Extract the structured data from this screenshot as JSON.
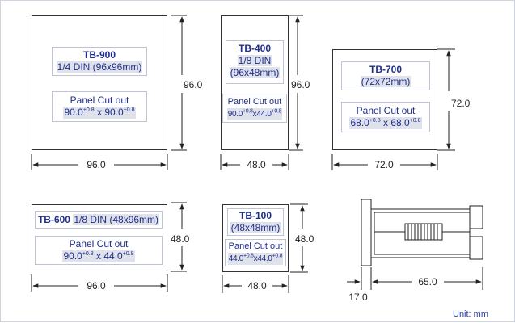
{
  "unit_note": "Unit: mm",
  "panel_cutout_label": "Panel Cut out",
  "models": {
    "tb900": {
      "name": "TB-900",
      "size": "1/4 DIN (96x96mm)",
      "cut_w": "90.0",
      "cut_w_tol": "+0.8",
      "times": "x",
      "cut_h": "90.0",
      "cut_h_tol": "+0.8",
      "width_dim": "96.0",
      "height_dim": "96.0"
    },
    "tb400": {
      "name": "TB-400",
      "din": "1/8 DIN",
      "size": "(96x48mm)",
      "cut_w": "90.0",
      "cut_w_tol": "+0.8",
      "times": "x",
      "cut_h": "44.0",
      "cut_h_tol": "+0.8",
      "width_dim": "48.0",
      "height_dim": "96.0"
    },
    "tb700": {
      "name": "TB-700",
      "size": "(72x72mm)",
      "cut_w": "68.0",
      "cut_w_tol": "+0.8",
      "times": "x",
      "cut_h": "68.0",
      "cut_h_tol": "+0.8",
      "width_dim": "72.0",
      "height_dim": "72.0"
    },
    "tb600": {
      "name": "TB-600",
      "size": "1/8 DIN (48x96mm)",
      "cut_w": "90.0",
      "cut_w_tol": "+0.8",
      "times": "x",
      "cut_h": "44.0",
      "cut_h_tol": "+0.8",
      "width_dim": "96.0",
      "height_dim": "48.0"
    },
    "tb100": {
      "name": "TB-100",
      "size": "(48x48mm)",
      "cut_w": "44.0",
      "cut_w_tol": "+0.8",
      "times": "x",
      "cut_h": "44.0",
      "cut_h_tol": "+0.8",
      "width_dim": "48.0",
      "height_dim": "48.0"
    }
  },
  "side_view": {
    "depth_dim": "65.0",
    "bezel_dim": "17.0"
  }
}
